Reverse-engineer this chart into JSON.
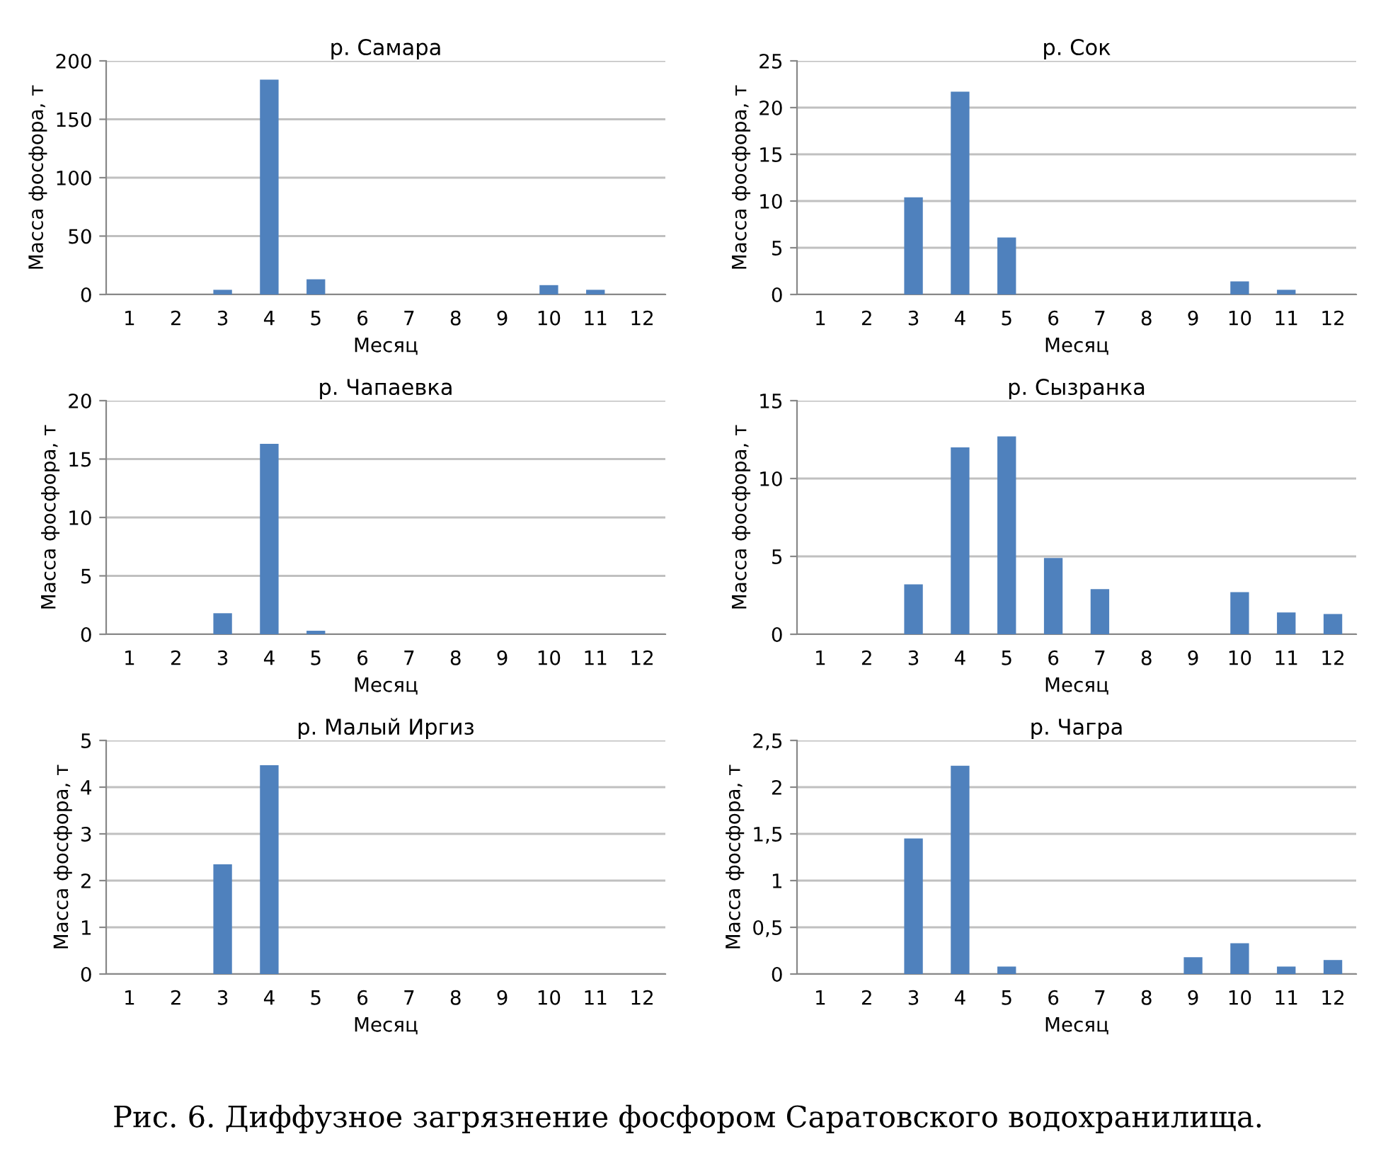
{
  "chart_data": [
    {
      "type": "bar",
      "title": "р. Самара",
      "xlabel": "Месяц",
      "ylabel": "Масса фосфора, т",
      "categories": [
        "1",
        "2",
        "3",
        "4",
        "5",
        "6",
        "7",
        "8",
        "9",
        "10",
        "11",
        "12"
      ],
      "values": [
        0,
        0,
        4,
        184,
        13,
        0,
        0,
        0,
        null,
        8,
        4,
        null
      ],
      "color": "#4f81bd",
      "ylim": [
        0,
        200
      ],
      "yticks": [
        0,
        50,
        100,
        150,
        200
      ],
      "grid": "y"
    },
    {
      "type": "bar",
      "title": "р. Сок",
      "xlabel": "Месяц",
      "ylabel": "Масса фосфора, т",
      "categories": [
        "1",
        "2",
        "3",
        "4",
        "5",
        "6",
        "7",
        "8",
        "9",
        "10",
        "11",
        "12"
      ],
      "values": [
        0,
        0,
        10.4,
        21.7,
        6.1,
        0,
        0,
        0,
        0,
        1.4,
        0.5,
        0
      ],
      "color": "#4f81bd",
      "ylim": [
        0,
        25
      ],
      "yticks": [
        0,
        5,
        10,
        15,
        20,
        25
      ],
      "grid": "y"
    },
    {
      "type": "bar",
      "title": "р. Чапаевка",
      "xlabel": "Месяц",
      "ylabel": "Масса фосфора, т",
      "categories": [
        "1",
        "2",
        "3",
        "4",
        "5",
        "6",
        "7",
        "8",
        "9",
        "10",
        "11",
        "12"
      ],
      "values": [
        0,
        0,
        1.8,
        16.3,
        0.3,
        0,
        0,
        0,
        0,
        0,
        0,
        0
      ],
      "color": "#4f81bd",
      "ylim": [
        0,
        20
      ],
      "yticks": [
        0,
        5,
        10,
        15,
        20
      ],
      "grid": "y"
    },
    {
      "type": "bar",
      "title": "р. Сызранка",
      "xlabel": "Месяц",
      "ylabel": "Масса фосфора, т",
      "categories": [
        "1",
        "2",
        "3",
        "4",
        "5",
        "6",
        "7",
        "8",
        "9",
        "10",
        "11",
        "12"
      ],
      "values": [
        0,
        0,
        3.2,
        12,
        12.7,
        4.9,
        2.9,
        0,
        0,
        2.7,
        1.4,
        1.3
      ],
      "color": "#4f81bd",
      "ylim": [
        0,
        15
      ],
      "yticks": [
        0,
        5,
        10,
        15
      ],
      "grid": "y"
    },
    {
      "type": "bar",
      "title": "р. Малый Иргиз",
      "xlabel": "Месяц",
      "ylabel": "Масса фосфора, т",
      "categories": [
        "1",
        "2",
        "3",
        "4",
        "5",
        "6",
        "7",
        "8",
        "9",
        "10",
        "11",
        "12"
      ],
      "values": [
        0,
        0,
        2.35,
        4.47,
        0,
        0,
        0,
        0,
        0,
        null,
        null,
        0
      ],
      "color": "#4f81bd",
      "ylim": [
        0,
        5
      ],
      "yticks": [
        0,
        1,
        2,
        3,
        4,
        5
      ],
      "grid": "y"
    },
    {
      "type": "bar",
      "title": "р. Чагра",
      "xlabel": "Месяц",
      "ylabel": "Масса фосфора, т",
      "categories": [
        "1",
        "2",
        "3",
        "4",
        "5",
        "6",
        "7",
        "8",
        "9",
        "10",
        "11",
        "12"
      ],
      "values": [
        0,
        0,
        1.45,
        2.23,
        0.08,
        0,
        0,
        0,
        0.18,
        0.33,
        0.08,
        0.15
      ],
      "color": "#4f81bd",
      "ylim": [
        0,
        2.5
      ],
      "yticks": [
        0,
        {
          "value": 0.5,
          "label": "0,5"
        },
        1,
        {
          "value": 1.5,
          "label": "1,5"
        },
        2,
        {
          "value": 2.5,
          "label": "2,5"
        }
      ],
      "grid": "y",
      "annotations": [
        "Рис. 6. Диффузное загрязнение фосфором Саратовского водохранилища."
      ]
    }
  ]
}
